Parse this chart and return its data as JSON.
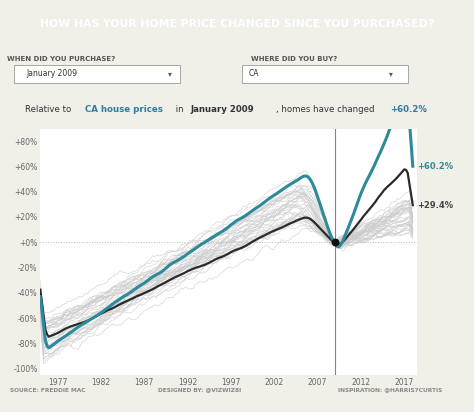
{
  "header_bg": "#2e6f8e",
  "header_text_color": "#ffffff",
  "teal_color": "#2e8a9a",
  "black_color": "#2a2a2a",
  "gray_color": "#cccccc",
  "zero_line_color": "#aaaaaa",
  "vline_color": "#888888",
  "bg_color": "#f0efe8",
  "plot_bg": "#ffffff",
  "label_purchase": "WHEN DID YOU PURCHASE?",
  "label_purchase_value": "January 2009",
  "label_buy": "WHERE DID YOU BUY?",
  "label_buy_value": "CA",
  "x_ticks": [
    1977,
    1982,
    1987,
    1992,
    1997,
    2002,
    2007,
    2012,
    2017
  ],
  "y_ticks": [
    -100,
    -80,
    -60,
    -40,
    -20,
    0,
    20,
    40,
    60,
    80
  ],
  "y_tick_labels": [
    "-100%",
    "-80%",
    "-60%",
    "-40%",
    "-20%",
    "+0%",
    "+20%",
    "+40%",
    "+60%",
    "+80%"
  ],
  "source_text": "SOURCE: FREDDIE MAC",
  "designed_text": "DESIGNED BY: @VIZWIZ8I",
  "inspiration_text": "INSPIRATION: @HARRIS7CURTIS"
}
